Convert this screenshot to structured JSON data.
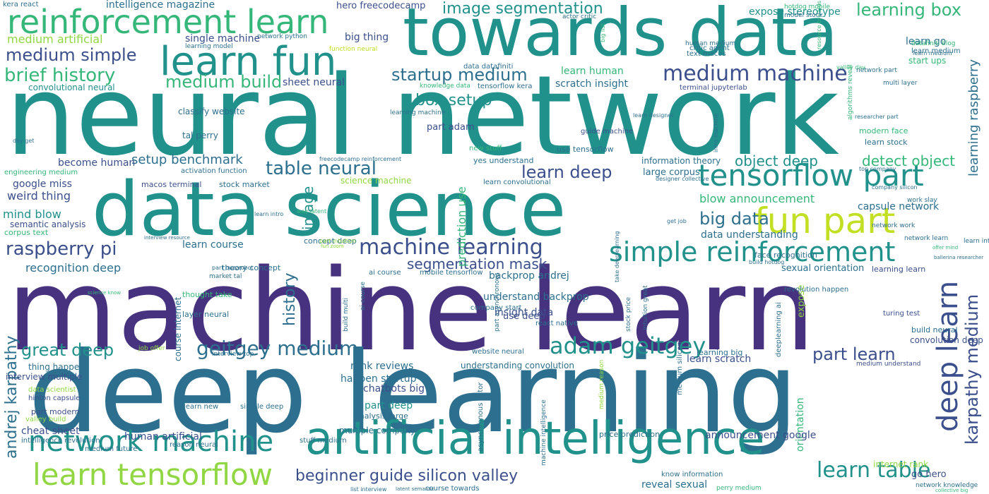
{
  "words": {
    "w1": "neural network",
    "w2": "machine learn",
    "w3": "deep learning",
    "w4": "data science",
    "w5": "towards data",
    "w6": "artificial intelligence",
    "w7": "reinforcement learn",
    "w8": "learn fun",
    "w9": "tensorflow part",
    "w10": "fun part",
    "w11": "learn tensorflow",
    "w12": "network machine",
    "w13": "simple reinforcement",
    "w14": "machine learning",
    "w15": "geitgey medium",
    "w16": "adam geitgey",
    "w17": "medium machine",
    "w18": "image segmentation",
    "w19": "learning box",
    "w20": "brief history",
    "w21": "medium simple",
    "w22": "medium build",
    "w23": "raspberry pi",
    "w24": "great deep",
    "w25": "learn deep",
    "w26": "table neural",
    "w27": "startup medium",
    "w28": "big data",
    "w29": "object deep",
    "w30": "detect object",
    "w31": "part learn",
    "w32": "learn table",
    "w33": "beginner guide silicon valley",
    "w34": "box setup",
    "w35": "segmentation mask",
    "w36": "setup benchmark",
    "w37": "deep learn",
    "w38": "karpathy medium",
    "w39": "andrej karpathy",
    "w40": "history",
    "w41": "image",
    "w42": "learning raspberry",
    "w43": "intelligence magazine",
    "w44": "hero freecodecamp",
    "w45": "expose stereotype",
    "w46": "medium artificial",
    "w47": "single machine",
    "w48": "big thing",
    "w49": "sheet neural",
    "w50": "scratch insight",
    "w51": "recognition deep",
    "w52": "cheat sheet",
    "w53": "human artificial",
    "w54": "announcement google",
    "w55": "blow announcement",
    "w56": "capsule network",
    "w57": "mind blow",
    "w58": "weird thing",
    "w59": "google miss",
    "w60": "become human",
    "w61": "convolutional neural",
    "w62": "learn course",
    "w63": "part adam",
    "w64": "learn human",
    "w65": "understand backprop",
    "w66": "backprop andrej",
    "w67": "insight data",
    "w68": "data understanding",
    "w69": "learn scratch",
    "w70": "rank reviews",
    "w71": "happen startup",
    "w72": "chatbots big",
    "w73": "part deep",
    "w74": "understanding convolution",
    "w75": "multiple company",
    "w76": "reveal sexual",
    "w77": "internet rank",
    "w78": "go hero",
    "w79": "sexual orientation",
    "w80": "learning learn",
    "w81": "face recognition",
    "w82": "large corpus",
    "w83": "information theory",
    "w84": "learn stock",
    "w85": "modern face",
    "w86": "learn go",
    "w87": "learn medium",
    "w88": "start ups",
    "w89": "critic agent",
    "w90": "text macos",
    "w91": "terminal jupyterlab",
    "w92": "tensorflow kera",
    "w93": "knowledge data",
    "w94": "classify website",
    "w95": "tal perry",
    "w96": "macos terminal",
    "w97": "stock market",
    "w98": "activation function",
    "w99": "semantic analysis",
    "w100": "corpus text",
    "w101": "engineering medium",
    "w102": "theory concept",
    "w103": "concept deep",
    "w104": "ai course",
    "w105": "mobile tensorflow",
    "w106": "science machine",
    "w107": "learn convolutional",
    "w108": "yes understand",
    "w109": "use tensorflow",
    "w110": "new stuff",
    "w111": "guide machine",
    "w112": "company start",
    "w113": "use deep",
    "w114": "layer neural",
    "w115": "course internet",
    "w116": "thought take",
    "w117": "revolution happen",
    "w118": "convolution deep",
    "w119": "build neural",
    "w120": "medium understand",
    "w121": "turing test",
    "w122": "learning big",
    "w123": "website neural",
    "w124": "interview top",
    "w125": "job offer",
    "w126": "thing happen",
    "w127": "interview multiple",
    "w128": "data scientist",
    "w129": "hinton capsule",
    "w130": "part modern",
    "w131": "valley build",
    "w132": "intelligence revolution",
    "w133": "medium future",
    "w134": "reason neural",
    "w135": "stuff medium",
    "w136": "analysis large",
    "w137": "price prediction",
    "w138": "know information",
    "w139": "perry medium",
    "w140": "course towards",
    "w141": "list interview",
    "w142": "network knowledge",
    "w143": "collective big",
    "w144": "simple deep",
    "w145": "learn new",
    "w146": "kera react",
    "w147": "network python",
    "w148": "learning model",
    "w149": "function neural",
    "w150": "data datafiniti",
    "w151": "actor critic",
    "w152": "hotdog mobile",
    "w153": "model stock",
    "w154": "human medium",
    "w155": "datafiniti blog",
    "w156": "learn medium",
    "w157": "valley day",
    "w158": "network part",
    "w159": "resource towards",
    "w160": "multi layer",
    "w161": "day get",
    "w162": "learning machine",
    "w163": "learn designer",
    "w164": "researcher part",
    "w165": "designer collective",
    "w166": "top company",
    "w167": "company silicon",
    "w168": "work slav",
    "w169": "network work",
    "w170": "network learn",
    "w171": "learn interview",
    "w172": "offer mind",
    "w173": "ballerina researcher",
    "w174": "build multi",
    "w175": "react native",
    "w176": "stock price",
    "w177": "intuition great",
    "w178": "deeplearning ai",
    "w179": "expose",
    "w180": "orientation",
    "w181": "asynchronous actor",
    "w182": "machine intelligence",
    "w183": "medium reason",
    "w184": "medium silicon",
    "w185": "prediction use",
    "w186": "part intuition",
    "w187": "fun zoom",
    "w188": "market tal",
    "w189": "part buzzrobot",
    "w190": "interview resource",
    "w191": "learn intro",
    "w192": "way latent",
    "w193": "science know",
    "w194": "get job",
    "w195": "build hotdog",
    "w196": "take deeplearning",
    "w197": "part asynchronous",
    "w198": "algorithms reveal",
    "w199": "intro machine",
    "w200": "big list",
    "w201": "latent semantic",
    "w202": "freecodecamp reinforcement"
  }
}
